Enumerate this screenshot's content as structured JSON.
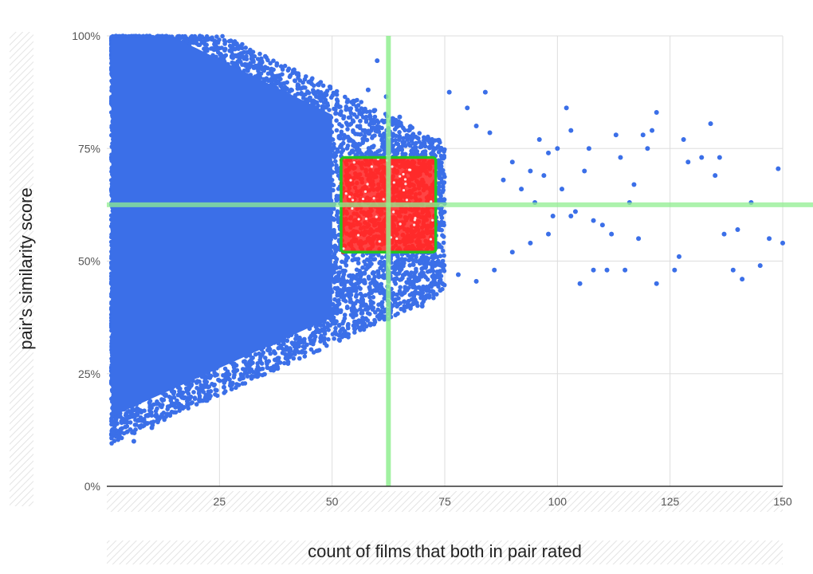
{
  "chart_data": {
    "type": "scatter",
    "title": "",
    "xlabel": "count of films that both in pair rated",
    "ylabel": "pair's similarity score",
    "xlim": [
      0,
      150
    ],
    "ylim": [
      0,
      100
    ],
    "x_ticks": [
      25,
      50,
      75,
      100,
      125,
      150
    ],
    "y_ticks": [
      0,
      25,
      50,
      75,
      100
    ],
    "x_tick_labels": [
      "25",
      "50",
      "75",
      "100",
      "125",
      "150"
    ],
    "y_tick_labels": [
      "0%",
      "25%",
      "50%",
      "75%",
      "100%"
    ],
    "grid": true,
    "legend": "none",
    "colors": {
      "points": "#3b6fe8",
      "highlight_points": "#ff2a2a",
      "highlight_box_border": "#22c422",
      "reference_lines": "#90ee90",
      "grid": "#dddddd",
      "axis": "#333333"
    },
    "reference_lines": {
      "vertical_x": 62.5,
      "horizontal_y": 62.5
    },
    "highlight_region": {
      "x": [
        52,
        73
      ],
      "y": [
        52,
        73
      ]
    },
    "series": [
      {
        "points": [
          [
            60,
            94.5
          ],
          [
            58,
            88
          ],
          [
            62,
            86.5
          ],
          [
            65,
            82
          ],
          [
            67,
            79
          ],
          [
            68,
            75
          ],
          [
            76,
            87.5
          ],
          [
            84,
            87.5
          ],
          [
            80,
            84
          ],
          [
            82,
            80
          ],
          [
            85,
            78.5
          ],
          [
            90,
            72
          ],
          [
            88,
            68
          ],
          [
            92,
            66
          ],
          [
            94,
            70
          ],
          [
            96,
            77
          ],
          [
            98,
            74
          ],
          [
            97,
            69
          ],
          [
            95,
            63
          ],
          [
            99,
            60
          ],
          [
            100,
            75
          ],
          [
            102,
            84
          ],
          [
            103,
            79
          ],
          [
            101,
            66
          ],
          [
            104,
            61
          ],
          [
            106,
            70
          ],
          [
            107,
            75
          ],
          [
            108,
            59
          ],
          [
            110,
            58
          ],
          [
            113,
            78
          ],
          [
            114,
            73
          ],
          [
            112,
            56
          ],
          [
            115,
            48
          ],
          [
            117,
            67
          ],
          [
            119,
            78
          ],
          [
            121,
            79
          ],
          [
            122,
            83
          ],
          [
            120,
            75
          ],
          [
            118,
            55
          ],
          [
            122,
            45
          ],
          [
            126,
            48
          ],
          [
            127,
            51
          ],
          [
            128,
            77
          ],
          [
            129,
            72
          ],
          [
            132,
            73
          ],
          [
            134,
            80.5
          ],
          [
            135,
            69
          ],
          [
            136,
            73
          ],
          [
            137,
            56
          ],
          [
            139,
            48
          ],
          [
            141,
            46
          ],
          [
            143,
            63
          ],
          [
            145,
            49
          ],
          [
            147,
            55
          ],
          [
            149,
            70.5
          ],
          [
            150,
            54
          ],
          [
            140,
            57
          ],
          [
            111,
            48
          ],
          [
            105,
            45
          ],
          [
            108,
            48
          ],
          [
            116,
            63
          ],
          [
            103,
            60
          ],
          [
            98,
            56
          ],
          [
            94,
            54
          ],
          [
            90,
            52
          ],
          [
            86,
            48
          ],
          [
            82,
            45.5
          ],
          [
            78,
            47
          ],
          [
            74,
            43.5
          ],
          [
            70,
            40
          ],
          [
            68,
            40.5
          ],
          [
            66,
            41
          ],
          [
            63,
            39
          ],
          [
            61,
            37.5
          ],
          [
            57,
            37
          ],
          [
            55,
            36.5
          ],
          [
            51,
            38.5
          ],
          [
            46,
            33.5
          ],
          [
            43,
            32
          ],
          [
            38,
            28
          ],
          [
            34,
            26
          ],
          [
            30,
            24
          ],
          [
            26,
            22
          ],
          [
            22,
            20
          ],
          [
            18,
            18
          ],
          [
            14,
            16
          ],
          [
            10,
            13
          ],
          [
            6,
            10
          ]
        ]
      }
    ]
  }
}
